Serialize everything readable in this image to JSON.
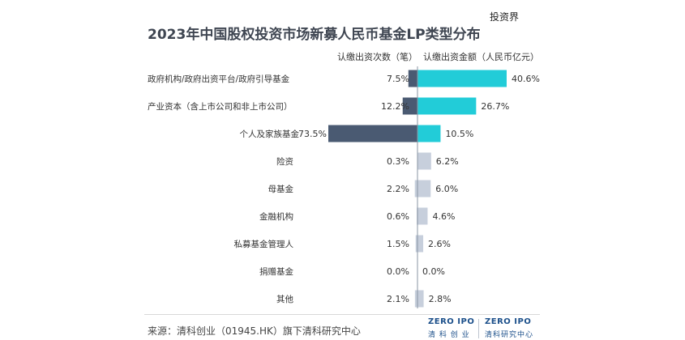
{
  "title": "2023年中国股权投资市场新募人民币基金LP类型分布",
  "watermark": "投资界",
  "footer": {
    "source": "来源：清科创业（01945.HK）旗下清科研究中心",
    "logo1_big": "ZERO IPO",
    "logo1_small": "清 科 创 业",
    "logo2_big": "ZERO IPO",
    "logo2_small": "清科研究中心"
  },
  "colors": {
    "count_bar": "#4a5a72",
    "amount_bar": "#22ccd8",
    "small_bar": "#c7cfdc",
    "title": "#3f4652"
  },
  "chart_data": {
    "type": "bar",
    "orientation": "horizontal-diverging",
    "categories": [
      "政府机构/政府出资平台/政府引导基金",
      "产业资本（含上市公司和非上市公司）",
      "个人及家族基金",
      "险资",
      "母基金",
      "金融机构",
      "私募基金管理人",
      "捐赠基金",
      "其他"
    ],
    "series": [
      {
        "name": "认缴出资次数（笔）",
        "values": [
          7.5,
          12.2,
          73.5,
          0.3,
          2.2,
          0.6,
          1.5,
          0.0,
          2.1
        ],
        "labels": [
          "7.5%",
          "12.2%",
          "73.5%",
          "0.3%",
          "2.2%",
          "0.6%",
          "1.5%",
          "0.0%",
          "2.1%"
        ]
      },
      {
        "name": "认缴出资金额（人民币亿元）",
        "values": [
          40.6,
          26.7,
          10.5,
          6.2,
          6.0,
          4.6,
          2.6,
          0.0,
          2.8
        ],
        "labels": [
          "40.6%",
          "26.7%",
          "10.5%",
          "6.2%",
          "6.0%",
          "4.6%",
          "2.6%",
          "0.0%",
          "2.8%"
        ]
      }
    ],
    "highlight_rows": 3,
    "legend": "top"
  }
}
